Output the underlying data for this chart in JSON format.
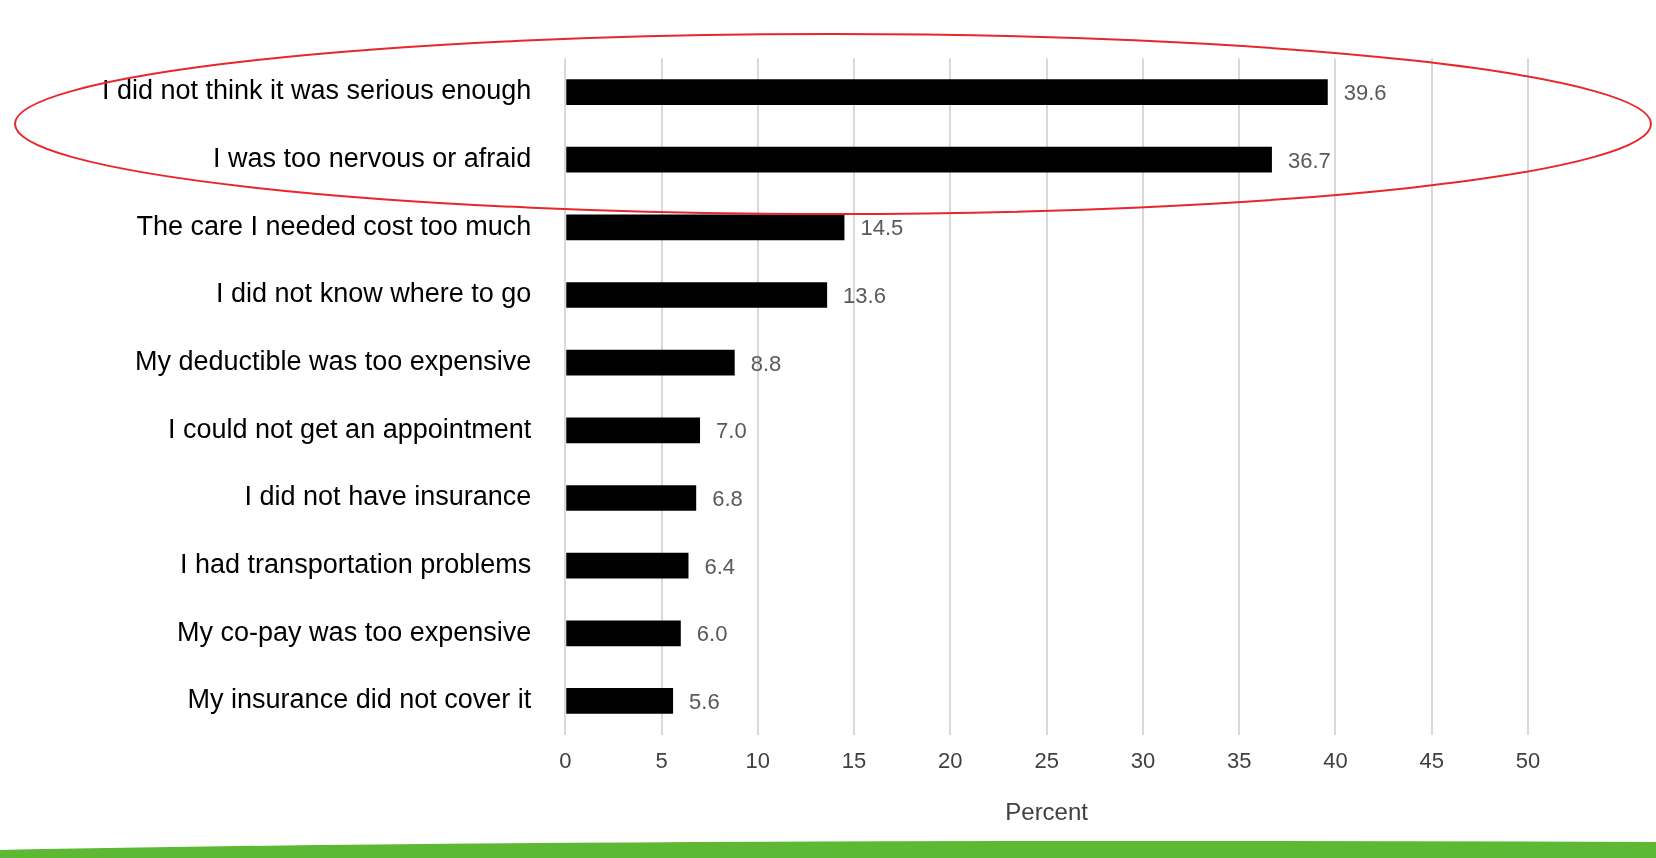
{
  "chart_data": {
    "type": "bar",
    "orientation": "horizontal",
    "categories": [
      "I did not think it was serious enough",
      "I was too nervous or afraid",
      "The care I needed cost too much",
      "I did not know where to go",
      "My deductible was too expensive",
      "I could not get an appointment",
      "I did not have insurance",
      "I had transportation problems",
      "My co-pay was too expensive",
      "My insurance did not cover it"
    ],
    "values": [
      39.6,
      36.7,
      14.5,
      13.6,
      8.8,
      7.0,
      6.8,
      6.4,
      6.0,
      5.6
    ],
    "value_labels": [
      "39.6",
      "36.7",
      "14.5",
      "13.6",
      "8.8",
      "7.0",
      "6.8",
      "6.4",
      "6.0",
      "5.6"
    ],
    "color": "#000000",
    "xlim": [
      0,
      50
    ],
    "xticks": [
      0,
      5,
      10,
      15,
      20,
      25,
      30,
      35,
      40,
      45,
      50
    ],
    "xlabel": "Percent",
    "grid": "x"
  }
}
